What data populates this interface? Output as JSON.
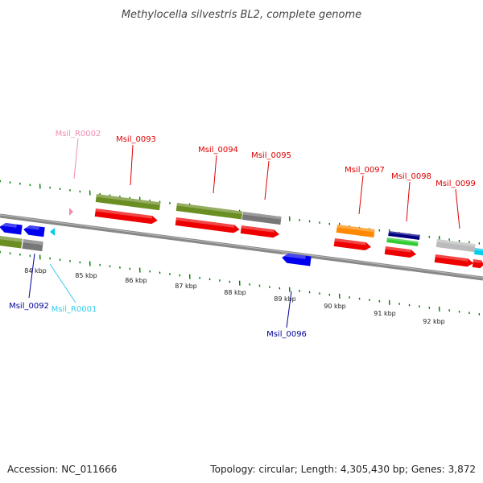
{
  "title": "Methylocella silvestris BL2, complete genome",
  "footer": {
    "accession": "Accession: NC_011666",
    "summary": "Topology: circular; Length: 4,305,430 bp; Genes: 3,872"
  },
  "scale_labels": [
    "84 kbp",
    "85 kbp",
    "86 kbp",
    "87 kbp",
    "88 kbp",
    "89 kbp",
    "90 kbp",
    "91 kbp",
    "92 kbp"
  ],
  "gene_labels": [
    {
      "text": "Msil_R0002",
      "color": "#f08cb4"
    },
    {
      "text": "Msil_0093",
      "color": "#dd0000"
    },
    {
      "text": "Msil_0094",
      "color": "#dd0000"
    },
    {
      "text": "Msil_0095",
      "color": "#dd0000"
    },
    {
      "text": "Msil_0097",
      "color": "#dd0000"
    },
    {
      "text": "Msil_0098",
      "color": "#dd0000"
    },
    {
      "text": "Msil_0099",
      "color": "#dd0000"
    },
    {
      "text": "Msil_0092",
      "color": "#000099"
    },
    {
      "text": "Msil_R0001",
      "color": "#33ccee"
    },
    {
      "text": "Msil_0096",
      "color": "#000099"
    }
  ],
  "colors": {
    "cds": "#ee0000",
    "olive": "#6b8e23",
    "gray": "#777777",
    "blue": "#0000ee",
    "orange": "#ff8800",
    "navy": "#000080",
    "green": "#33cc33",
    "light_gray": "#bbbbbb",
    "cyan": "#00ccee",
    "pink": "#f08cb4",
    "tick_green": "#007700",
    "backbone": "#888888"
  }
}
